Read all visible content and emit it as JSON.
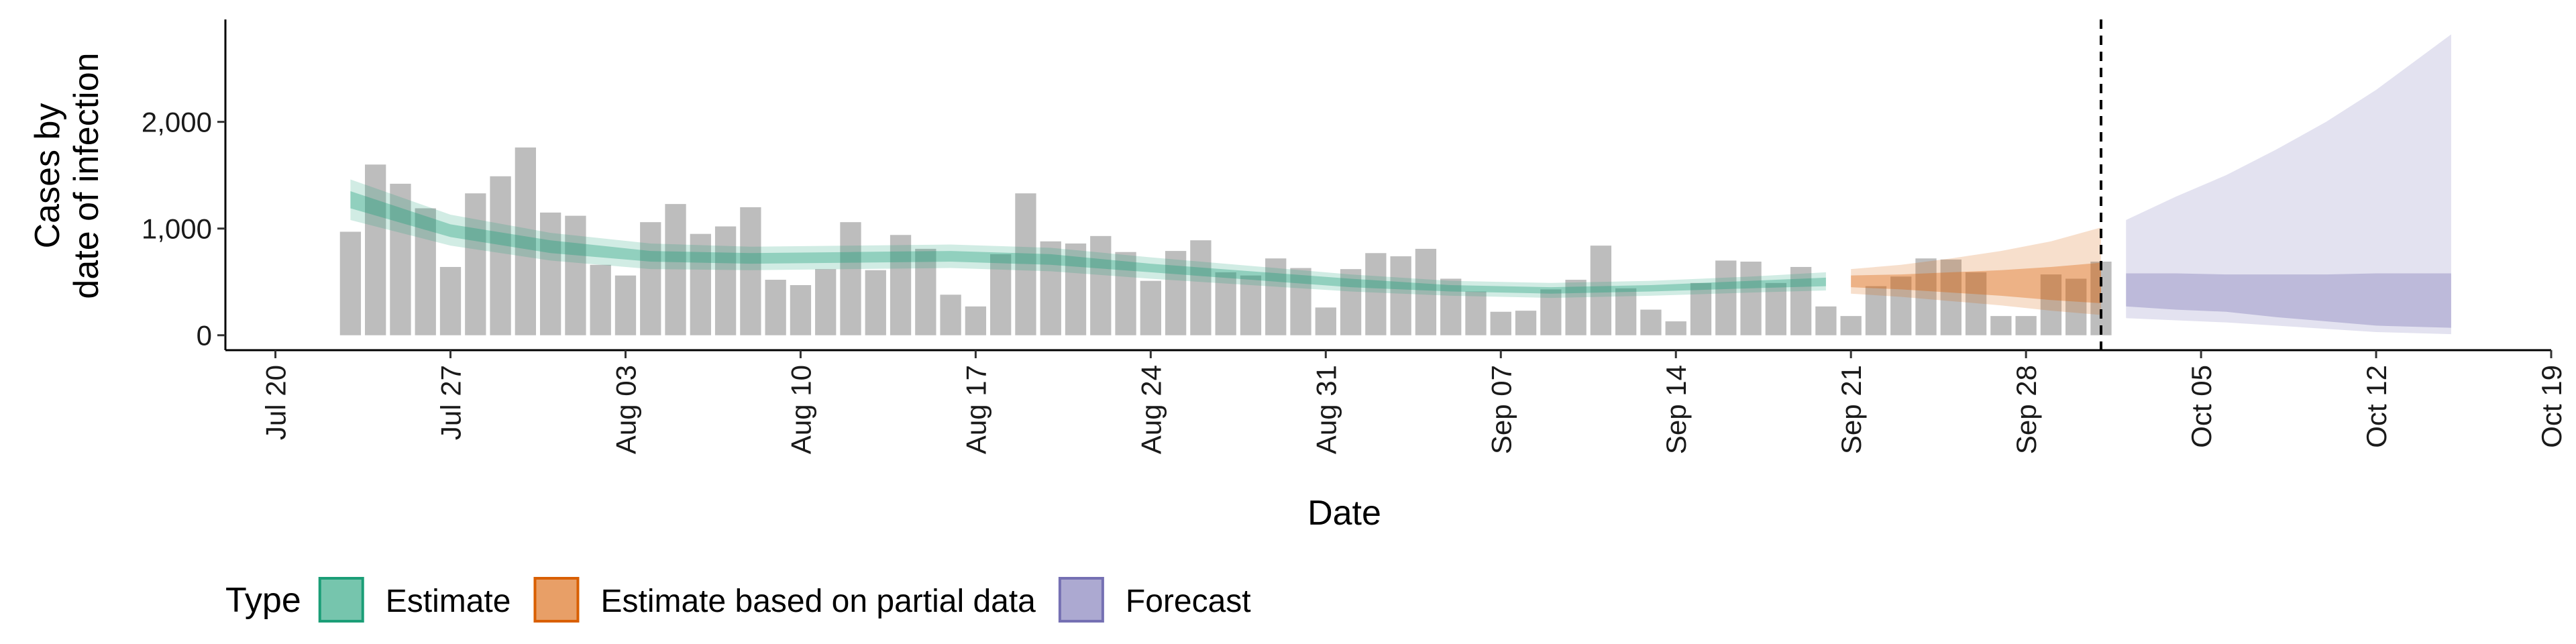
{
  "chart_data": {
    "type": "bar",
    "y_label_lines": [
      "Cases by",
      "date of infection"
    ],
    "x_label": "Date",
    "legend_title": "Type",
    "legend_position": "bottom",
    "categories": [
      "Jul 23",
      "Jul 24",
      "Jul 25",
      "Jul 26",
      "Jul 27",
      "Jul 28",
      "Jul 29",
      "Jul 30",
      "Jul 31",
      "Aug 01",
      "Aug 02",
      "Aug 03",
      "Aug 04",
      "Aug 05",
      "Aug 06",
      "Aug 07",
      "Aug 08",
      "Aug 09",
      "Aug 10",
      "Aug 11",
      "Aug 12",
      "Aug 13",
      "Aug 14",
      "Aug 15",
      "Aug 16",
      "Aug 17",
      "Aug 18",
      "Aug 19",
      "Aug 20",
      "Aug 21",
      "Aug 22",
      "Aug 23",
      "Aug 24",
      "Aug 25",
      "Aug 26",
      "Aug 27",
      "Aug 28",
      "Aug 29",
      "Aug 30",
      "Aug 31",
      "Sep 01",
      "Sep 02",
      "Sep 03",
      "Sep 04",
      "Sep 05",
      "Sep 06",
      "Sep 07",
      "Sep 08",
      "Sep 09",
      "Sep 10",
      "Sep 11",
      "Sep 12",
      "Sep 13",
      "Sep 14",
      "Sep 15",
      "Sep 16",
      "Sep 17",
      "Sep 18",
      "Sep 19",
      "Sep 20",
      "Sep 21",
      "Sep 22",
      "Sep 23",
      "Sep 24",
      "Sep 25",
      "Sep 26",
      "Sep 27",
      "Sep 28",
      "Sep 29",
      "Sep 30",
      "Oct 01"
    ],
    "values": [
      970,
      1600,
      1420,
      1190,
      640,
      1330,
      1490,
      1760,
      1150,
      1120,
      660,
      560,
      1060,
      1230,
      950,
      1020,
      1200,
      520,
      470,
      620,
      1060,
      610,
      940,
      810,
      380,
      270,
      760,
      1330,
      880,
      860,
      930,
      780,
      510,
      790,
      890,
      590,
      560,
      720,
      630,
      260,
      620,
      770,
      740,
      810,
      530,
      410,
      220,
      230,
      430,
      520,
      840,
      440,
      240,
      130,
      490,
      700,
      690,
      490,
      640,
      270,
      180,
      460,
      550,
      720,
      710,
      590,
      180,
      180,
      570,
      530,
      690
    ],
    "bar_color": "#bdbdbd",
    "series": [
      {
        "name": "Estimate",
        "color": "#1b9e77",
        "x": [
          "Jul 23",
          "Jul 27",
          "Jul 31",
          "Aug 04",
          "Aug 08",
          "Aug 12",
          "Aug 16",
          "Aug 20",
          "Aug 24",
          "Aug 28",
          "Sep 01",
          "Sep 05",
          "Sep 09",
          "Sep 13",
          "Sep 17",
          "Sep 20"
        ],
        "lower_90": [
          1080,
          840,
          700,
          620,
          610,
          620,
          630,
          600,
          530,
          470,
          410,
          370,
          350,
          370,
          400,
          420
        ],
        "upper_90": [
          1460,
          1130,
          960,
          860,
          830,
          840,
          850,
          820,
          730,
          650,
          570,
          510,
          490,
          510,
          550,
          590
        ],
        "lower_50": [
          1190,
          920,
          770,
          690,
          670,
          680,
          690,
          660,
          590,
          520,
          450,
          410,
          390,
          410,
          440,
          460
        ],
        "upper_50": [
          1350,
          1040,
          890,
          790,
          770,
          780,
          790,
          760,
          670,
          600,
          530,
          470,
          450,
          470,
          510,
          540
        ]
      },
      {
        "name": "Estimate based on partial data",
        "color": "#d95f02",
        "x": [
          "Sep 21",
          "Sep 23",
          "Sep 25",
          "Sep 27",
          "Sep 29",
          "Oct 01"
        ],
        "lower_90": [
          390,
          360,
          320,
          280,
          230,
          190
        ],
        "upper_90": [
          620,
          660,
          720,
          790,
          880,
          1010
        ],
        "lower_50": [
          450,
          430,
          400,
          370,
          330,
          300
        ],
        "upper_50": [
          560,
          570,
          590,
          610,
          640,
          680
        ]
      },
      {
        "name": "Forecast",
        "color": "#7570b3",
        "x": [
          "Oct 02",
          "Oct 04",
          "Oct 06",
          "Oct 08",
          "Oct 10",
          "Oct 12",
          "Oct 15"
        ],
        "lower_90": [
          160,
          140,
          120,
          90,
          60,
          30,
          10
        ],
        "upper_90": [
          1080,
          1300,
          1500,
          1740,
          2000,
          2300,
          2820
        ],
        "lower_50": [
          270,
          240,
          220,
          170,
          130,
          90,
          70
        ],
        "upper_50": [
          580,
          580,
          570,
          570,
          570,
          580,
          580
        ]
      }
    ],
    "vline": "Oct 01",
    "xlim": [
      "Jul 18",
      "Oct 19"
    ],
    "xticks": [
      "Jul 20",
      "Jul 27",
      "Aug 03",
      "Aug 10",
      "Aug 17",
      "Aug 24",
      "Aug 31",
      "Sep 07",
      "Sep 14",
      "Sep 21",
      "Sep 28",
      "Oct 05",
      "Oct 12",
      "Oct 19"
    ],
    "ylim": [
      -140,
      2960
    ],
    "yticks": [
      0,
      {
        "value": 1000,
        "label": "1,000"
      },
      {
        "value": 2000,
        "label": "2,000"
      }
    ],
    "grid": false
  }
}
